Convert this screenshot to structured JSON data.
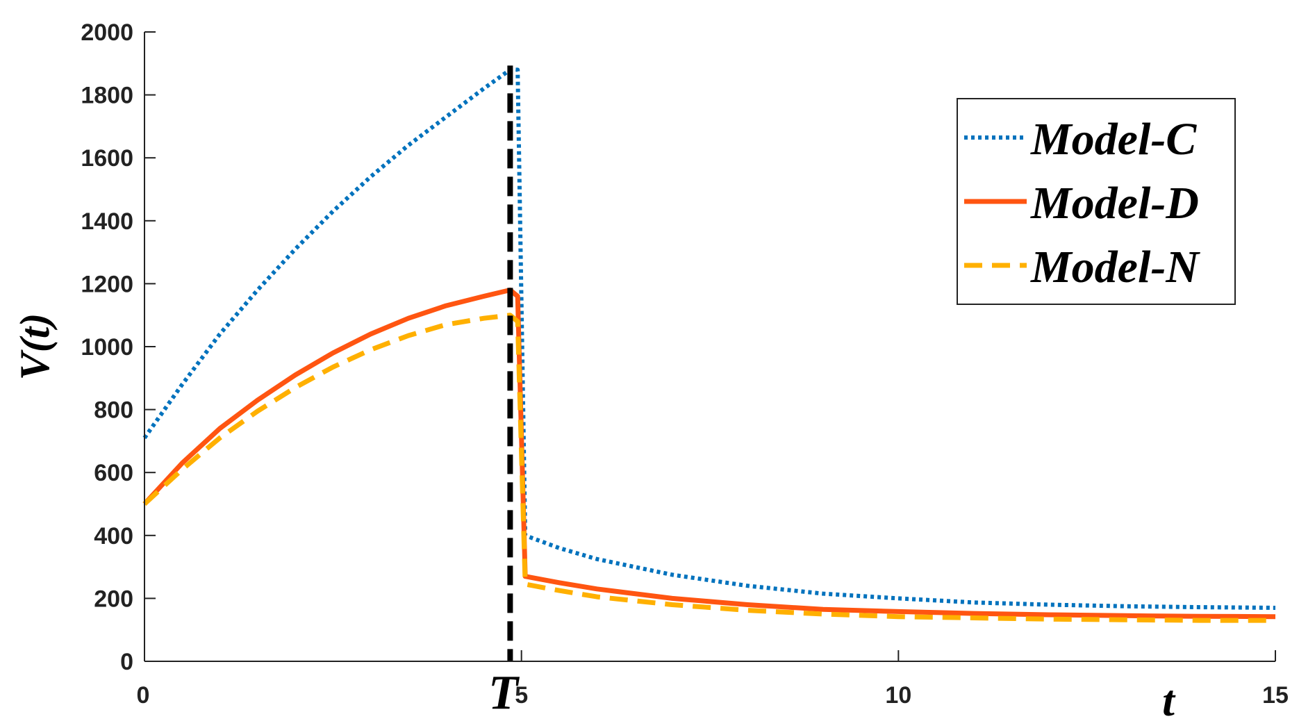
{
  "chart_data": {
    "type": "line",
    "xlabel": "t",
    "ylabel": "V(t)",
    "xlim": [
      0,
      15
    ],
    "ylim": [
      0,
      2000
    ],
    "x_ticks": [
      "0",
      "5",
      "10",
      "15"
    ],
    "y_ticks": [
      "0",
      "200",
      "400",
      "600",
      "800",
      "1000",
      "1200",
      "1400",
      "1600",
      "1800",
      "2000"
    ],
    "grid": false,
    "legend_position": "top-right",
    "annotation": {
      "label": "T",
      "x": 4.85,
      "style": "vertical dashed line"
    },
    "series": [
      {
        "name": "Model-C",
        "color": "#0072BD",
        "style": "dotted",
        "x": [
          0,
          0.5,
          1,
          1.5,
          2,
          2.5,
          3,
          3.5,
          4,
          4.5,
          4.85,
          4.95,
          5.05,
          5.5,
          6,
          7,
          8,
          9,
          10,
          11,
          12,
          13,
          14,
          15
        ],
        "y": [
          710,
          880,
          1040,
          1180,
          1310,
          1430,
          1540,
          1640,
          1730,
          1820,
          1880,
          1880,
          400,
          360,
          325,
          275,
          240,
          215,
          200,
          187,
          180,
          175,
          172,
          170
        ]
      },
      {
        "name": "Model-D",
        "color": "#FF5511",
        "style": "solid",
        "x": [
          0,
          0.5,
          1,
          1.5,
          2,
          2.5,
          3,
          3.5,
          4,
          4.5,
          4.85,
          4.95,
          5.05,
          5.5,
          6,
          7,
          8,
          9,
          10,
          11,
          12,
          13,
          14,
          15
        ],
        "y": [
          500,
          630,
          740,
          830,
          910,
          980,
          1040,
          1090,
          1130,
          1160,
          1180,
          1160,
          270,
          250,
          230,
          200,
          180,
          165,
          158,
          152,
          148,
          145,
          143,
          142
        ]
      },
      {
        "name": "Model-N",
        "color": "#FFB000",
        "style": "dashed",
        "x": [
          0,
          0.5,
          1,
          1.5,
          2,
          2.5,
          3,
          3.5,
          4,
          4.5,
          4.85,
          4.95,
          5.05,
          5.5,
          6,
          7,
          8,
          9,
          10,
          11,
          12,
          13,
          14,
          15
        ],
        "y": [
          500,
          610,
          710,
          795,
          870,
          935,
          990,
          1035,
          1070,
          1090,
          1100,
          1080,
          245,
          225,
          205,
          180,
          162,
          150,
          142,
          138,
          134,
          132,
          130,
          130
        ]
      }
    ]
  }
}
